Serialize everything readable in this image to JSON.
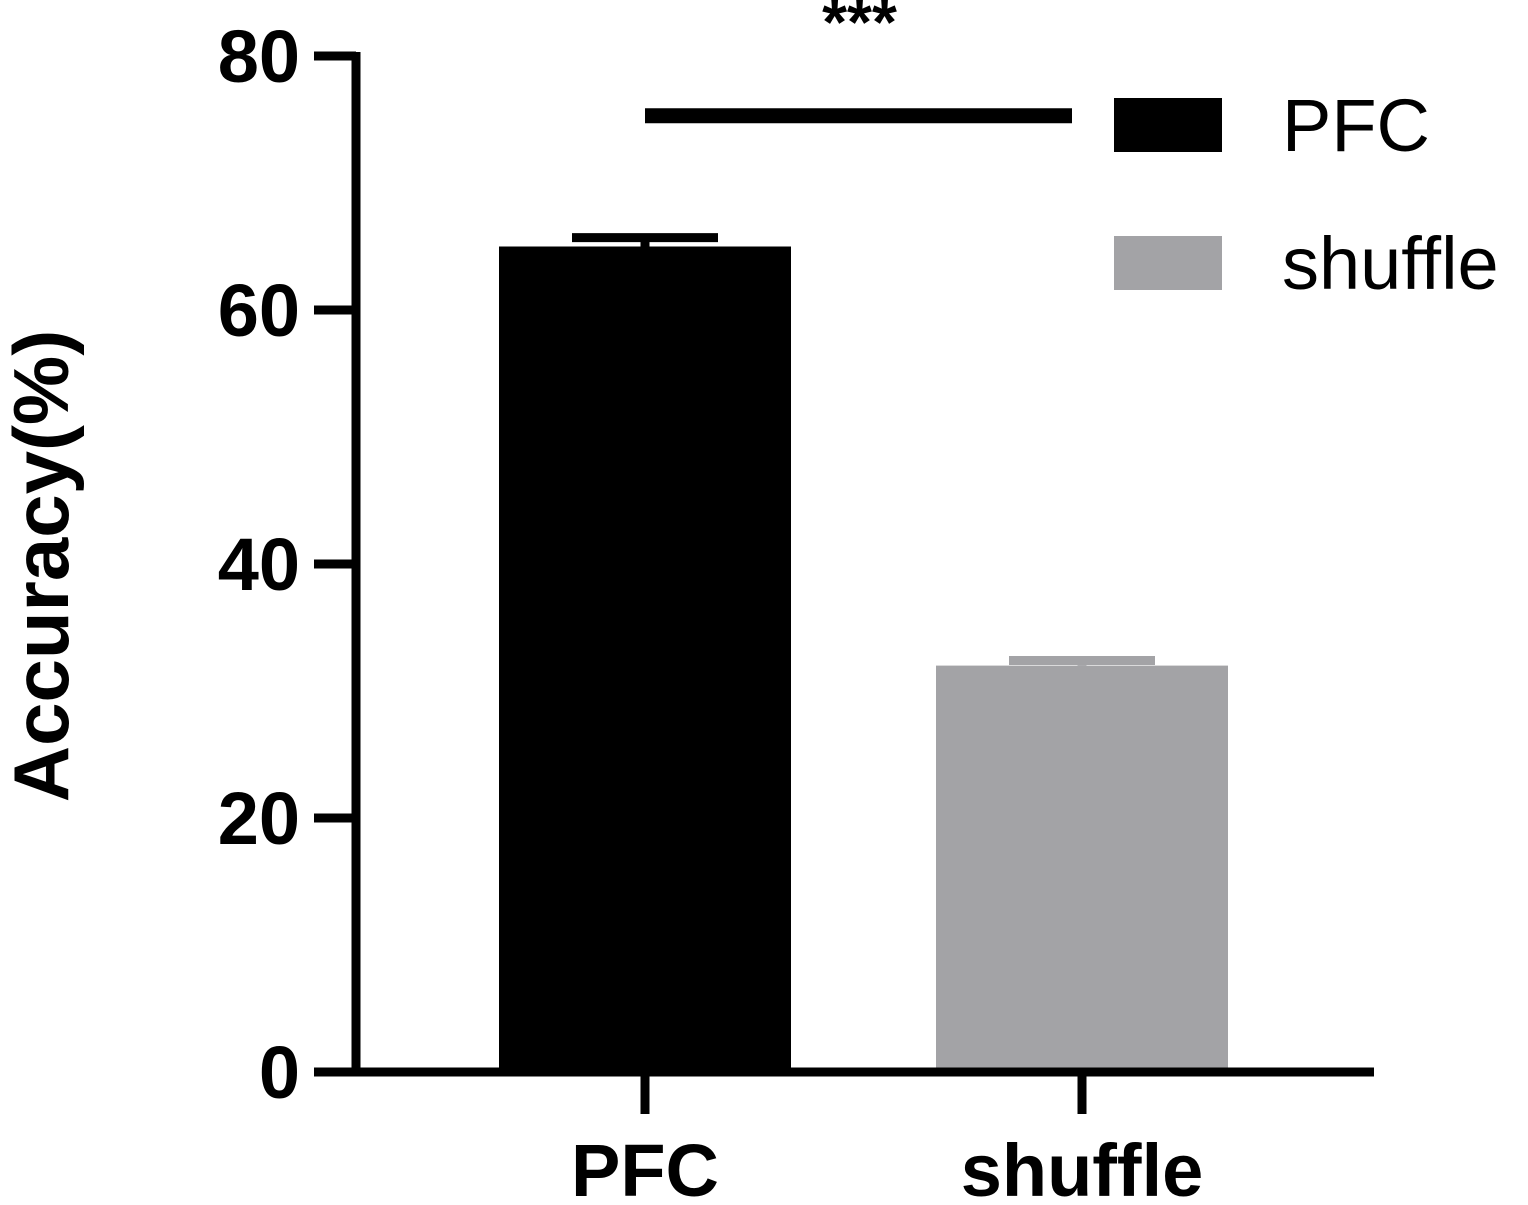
{
  "chart_data": {
    "type": "bar",
    "categories": [
      "PFC",
      "shuffle"
    ],
    "values": [
      65,
      32
    ],
    "errors": [
      0.7,
      0.4
    ],
    "colors": [
      "#000000",
      "#a3a3a6"
    ],
    "ylabel": "Accuracy(%)",
    "xlabel": "",
    "ylim": [
      0,
      80
    ],
    "yticks": [
      0,
      20,
      40,
      60,
      80
    ],
    "ytick_labels": [
      "0",
      "20",
      "40",
      "60",
      "80"
    ],
    "legend": {
      "position": "top-right",
      "entries": [
        {
          "label": "PFC",
          "color": "#000000"
        },
        {
          "label": "shuffle",
          "color": "#a3a3a6"
        }
      ]
    },
    "significance": {
      "label": "***",
      "between": [
        "PFC",
        "shuffle"
      ],
      "y": 75.3
    },
    "grid": false
  }
}
